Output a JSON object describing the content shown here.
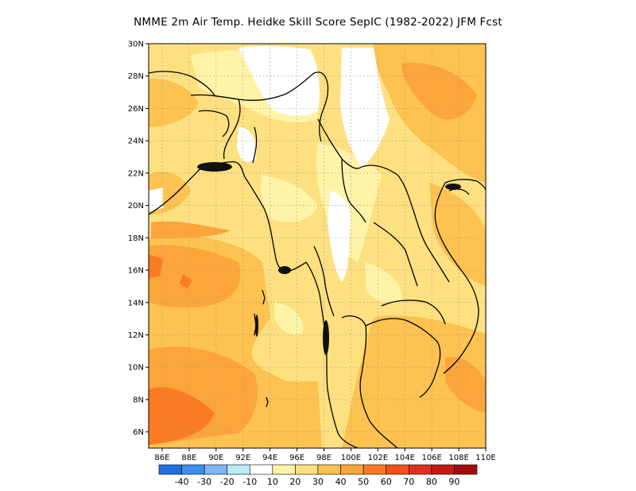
{
  "title": "NMME  2m Air Temp. Heidke Skill Score SepIC (1982-2022) JFM Fcst",
  "map": {
    "lon_range": [
      85,
      110
    ],
    "lat_range": [
      5,
      30
    ],
    "lat_ticks": [
      "6N",
      "8N",
      "10N",
      "12N",
      "14N",
      "16N",
      "18N",
      "20N",
      "22N",
      "24N",
      "26N",
      "28N",
      "30N"
    ],
    "lon_ticks": [
      "86E",
      "88E",
      "90E",
      "92E",
      "94E",
      "96E",
      "98E",
      "100E",
      "102E",
      "104E",
      "106E",
      "108E",
      "110E"
    ],
    "grid": "dotted"
  },
  "colorbar": {
    "labels": [
      "-40",
      "-30",
      "-20",
      "-10",
      "10",
      "20",
      "30",
      "40",
      "50",
      "60",
      "70",
      "80",
      "90"
    ],
    "colors": [
      "#1f6fe0",
      "#3d8ff0",
      "#7fb6f5",
      "#b8ecf7",
      "#ffffff",
      "#fff3a8",
      "#fee080",
      "#fdc24f",
      "#fca53b",
      "#fb7b24",
      "#f4501a",
      "#e0301c",
      "#c41a12",
      "#a00e0c"
    ]
  },
  "colors": {
    "land_outline": "#000000",
    "background": "#ffffff"
  }
}
